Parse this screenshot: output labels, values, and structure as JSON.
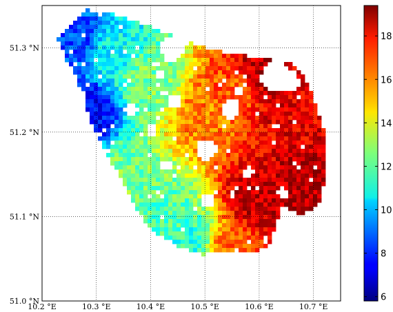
{
  "chart_data": {
    "type": "heatmap",
    "title": "",
    "xlabel": "",
    "ylabel": "",
    "xlim": [
      10.2,
      10.75
    ],
    "ylim": [
      51.0,
      51.35
    ],
    "x_ticks": [
      {
        "value": 10.2,
        "label": "10.2 °E"
      },
      {
        "value": 10.3,
        "label": "10.3 °E"
      },
      {
        "value": 10.4,
        "label": "10.4 °E"
      },
      {
        "value": 10.5,
        "label": "10.5 °E"
      },
      {
        "value": 10.6,
        "label": "10.6 °E"
      },
      {
        "value": 10.7,
        "label": "10.7 °E"
      }
    ],
    "y_ticks": [
      {
        "value": 51.0,
        "label": "51.0 °N"
      },
      {
        "value": 51.1,
        "label": "51.1 °N"
      },
      {
        "value": 51.2,
        "label": "51.2 °N"
      },
      {
        "value": 51.3,
        "label": "51.3 °N"
      }
    ],
    "grid": true,
    "colorbar": {
      "colormap": "jet",
      "range": [
        5.8,
        19.4
      ],
      "ticks": [
        6,
        8,
        10,
        12,
        14,
        16,
        18
      ],
      "placement": "right"
    },
    "field": {
      "description_points": [
        {
          "x": 10.27,
          "y": 51.31,
          "value": 8.5
        },
        {
          "x": 10.28,
          "y": 51.22,
          "value": 7.5
        },
        {
          "x": 10.33,
          "y": 51.3,
          "value": 11.0
        },
        {
          "x": 10.35,
          "y": 51.15,
          "value": 12.5
        },
        {
          "x": 10.4,
          "y": 51.26,
          "value": 12.5
        },
        {
          "x": 10.42,
          "y": 51.1,
          "value": 12.0
        },
        {
          "x": 10.47,
          "y": 51.07,
          "value": 11.5
        },
        {
          "x": 10.5,
          "y": 51.22,
          "value": 16.0
        },
        {
          "x": 10.55,
          "y": 51.25,
          "value": 16.5
        },
        {
          "x": 10.6,
          "y": 51.27,
          "value": 18.5
        },
        {
          "x": 10.65,
          "y": 51.22,
          "value": 18.0
        },
        {
          "x": 10.7,
          "y": 51.14,
          "value": 18.8
        },
        {
          "x": 10.6,
          "y": 51.12,
          "value": 18.5
        },
        {
          "x": 10.55,
          "y": 51.06,
          "value": 16.5
        }
      ]
    }
  }
}
